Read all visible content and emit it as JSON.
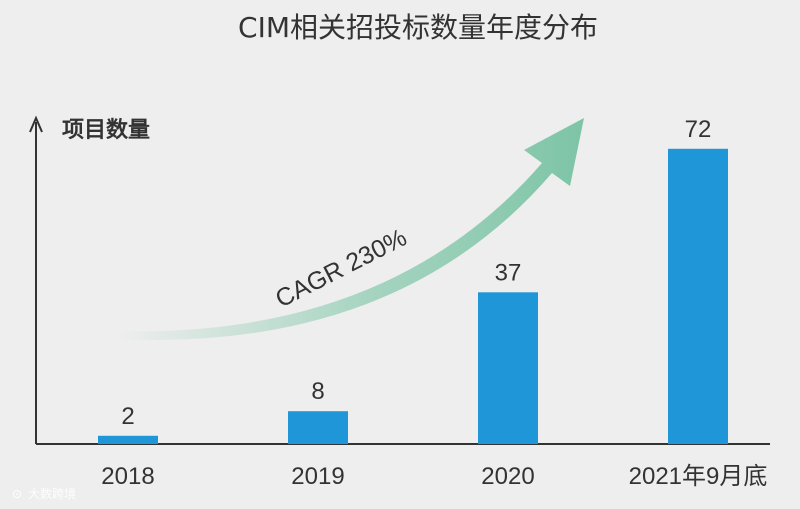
{
  "chart_data": {
    "type": "bar",
    "title": "CIM相关招投标数量年度分布",
    "ylabel": "项目数量",
    "xlabel": "",
    "categories": [
      "2018",
      "2019",
      "2020",
      "2021年9月底"
    ],
    "values": [
      2,
      8,
      37,
      72
    ],
    "ylim": [
      0,
      80
    ],
    "grid": false,
    "bar_color": "#1f96d8",
    "annotation": {
      "text": "CAGR 230%",
      "arrow_color": "#8ccbb0"
    }
  },
  "watermark": {
    "text": "大数跨境"
  }
}
